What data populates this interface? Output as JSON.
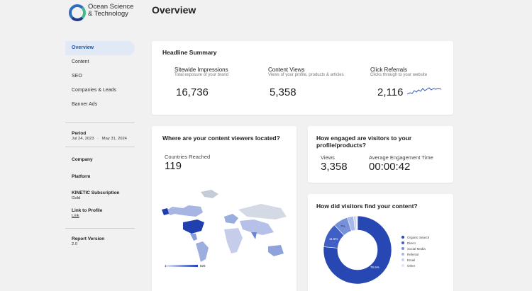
{
  "brand": {
    "name": "Ocean Science & Technology"
  },
  "nav": {
    "items": [
      "Overview",
      "Content",
      "SEO",
      "Companies & Leads",
      "Banner Ads"
    ]
  },
  "meta": {
    "period_label": "Period",
    "period_start": "Jul 24, 2023",
    "period_end": "May 31, 2024",
    "company_label": "Company",
    "platform_label": "Platform",
    "subscription_label": "KINETIC Subscription",
    "subscription_value": "Gold",
    "profile_label": "Link to Profile",
    "profile_link": "Link",
    "version_label": "Report Version",
    "version_value": "2.0"
  },
  "page": {
    "title": "Overview"
  },
  "headline": {
    "title": "Headline Summary",
    "impressions": {
      "label": "Sitewide Impressions",
      "sub": "Total exposure of your brand",
      "value": "16,736"
    },
    "views": {
      "label": "Content Views",
      "sub": "Views of your profile, products & articles",
      "value": "5,358"
    },
    "clicks": {
      "label": "Click Referrals",
      "sub": "Clicks through to your website",
      "value": "2,116"
    }
  },
  "location": {
    "title": "Where are your content viewers located?",
    "countries_label": "Countries Reached",
    "countries_value": "119",
    "scale_min": "1",
    "scale_max": "826"
  },
  "engagement": {
    "title": "How engaged are visitors to your profile/products?",
    "views_label": "Views",
    "views_value": "3,358",
    "time_label": "Average Engagement Time",
    "time_value": "00:00:42"
  },
  "sources": {
    "title": "How did visitors find your content?",
    "legend": [
      "Organic Search",
      "Direct",
      "Social Media",
      "Referral",
      "Email",
      "Other"
    ],
    "colors": [
      "#2747b3",
      "#3f5fc4",
      "#7791d8",
      "#a8b8e8",
      "#c9d3f0",
      "#dfe5f6"
    ],
    "values": [
      76.5,
      11.6,
      7,
      3,
      1.2,
      0.7
    ],
    "labels": {
      "organic": "76.5%",
      "direct": "11.6%",
      "social": "7%"
    }
  }
}
